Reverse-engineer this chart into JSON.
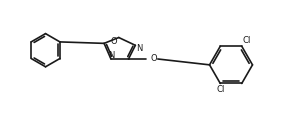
{
  "bg_color": "#ffffff",
  "line_color": "#1a1a1a",
  "line_width": 1.2,
  "fig_width": 2.99,
  "fig_height": 1.17,
  "dpi": 100,
  "cl_label": "Cl",
  "o_label": "O",
  "n_label": "N"
}
